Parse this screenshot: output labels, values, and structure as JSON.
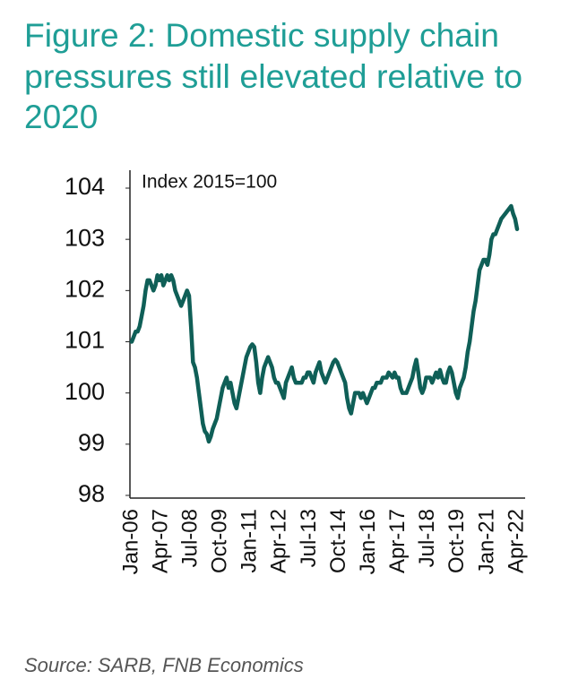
{
  "chart_data": {
    "type": "line",
    "title": [
      "Figure 2: Domestic supply chain",
      "pressures still elevated relative to",
      "2020"
    ],
    "y_label": "Index 2015=100",
    "source": "Source: SARB, FNB Economics",
    "categories": [
      "Jan-06",
      null,
      null,
      null,
      null,
      null,
      null,
      null,
      null,
      null,
      null,
      null,
      null,
      null,
      null,
      "Apr-07",
      null,
      null,
      null,
      null,
      null,
      null,
      null,
      null,
      null,
      null,
      null,
      null,
      null,
      null,
      "Jul-08",
      null,
      null,
      null,
      null,
      null,
      null,
      null,
      null,
      null,
      null,
      null,
      null,
      null,
      null,
      "Oct-09",
      null,
      null,
      null,
      null,
      null,
      null,
      null,
      null,
      null,
      null,
      null,
      null,
      null,
      null,
      "Jan-11",
      null,
      null,
      null,
      null,
      null,
      null,
      null,
      null,
      null,
      null,
      null,
      null,
      null,
      null,
      "Apr-12",
      null,
      null,
      null,
      null,
      null,
      null,
      null,
      null,
      null,
      null,
      null,
      null,
      null,
      null,
      "Jul-13",
      null,
      null,
      null,
      null,
      null,
      null,
      null,
      null,
      null,
      null,
      null,
      null,
      null,
      null,
      "Oct-14",
      null,
      null,
      null,
      null,
      null,
      null,
      null,
      null,
      null,
      null,
      null,
      null,
      null,
      null,
      "Jan-16",
      null,
      null,
      null,
      null,
      null,
      null,
      null,
      null,
      null,
      null,
      null,
      null,
      null,
      null,
      "Apr-17",
      null,
      null,
      null,
      null,
      null,
      null,
      null,
      null,
      null,
      null,
      null,
      null,
      null,
      null,
      "Jul-18",
      null,
      null,
      null,
      null,
      null,
      null,
      null,
      null,
      null,
      null,
      null,
      null,
      null,
      null,
      "Oct-19",
      null,
      null,
      null,
      null,
      null,
      null,
      null,
      null,
      null,
      null,
      null,
      null,
      null,
      null,
      "Jan-21",
      null,
      null,
      null,
      null,
      null,
      null,
      null,
      null,
      null,
      null,
      null,
      null,
      null,
      null,
      "Apr-22"
    ],
    "values": [
      101.0,
      101.1,
      101.2,
      101.2,
      101.3,
      101.5,
      101.7,
      102.0,
      102.2,
      102.2,
      102.1,
      102.0,
      102.1,
      102.3,
      102.2,
      102.3,
      102.1,
      102.2,
      102.3,
      102.2,
      102.3,
      102.2,
      102.0,
      101.9,
      101.8,
      101.7,
      101.8,
      101.9,
      102.0,
      101.9,
      101.3,
      100.6,
      100.5,
      100.3,
      100.0,
      99.7,
      99.4,
      99.25,
      99.2,
      99.05,
      99.15,
      99.3,
      99.4,
      99.5,
      99.7,
      99.9,
      100.1,
      100.2,
      100.3,
      100.1,
      100.2,
      100.0,
      99.8,
      99.7,
      99.9,
      100.1,
      100.3,
      100.5,
      100.7,
      100.8,
      100.9,
      100.95,
      100.9,
      100.6,
      100.2,
      100.0,
      100.3,
      100.5,
      100.6,
      100.7,
      100.6,
      100.5,
      100.3,
      100.2,
      100.2,
      100.1,
      100.0,
      99.9,
      100.2,
      100.3,
      100.4,
      100.5,
      100.3,
      100.2,
      100.2,
      100.2,
      100.2,
      100.3,
      100.3,
      100.4,
      100.4,
      100.3,
      100.2,
      100.4,
      100.5,
      100.6,
      100.4,
      100.3,
      100.2,
      100.3,
      100.4,
      100.5,
      100.6,
      100.65,
      100.6,
      100.5,
      100.4,
      100.3,
      100.2,
      99.9,
      99.7,
      99.6,
      99.8,
      100.0,
      100.0,
      100.0,
      99.9,
      100.0,
      99.9,
      99.8,
      99.9,
      100.0,
      100.1,
      100.1,
      100.2,
      100.2,
      100.2,
      100.3,
      100.3,
      100.3,
      100.4,
      100.35,
      100.3,
      100.4,
      100.3,
      100.3,
      100.1,
      100.0,
      100.0,
      100.0,
      100.1,
      100.2,
      100.3,
      100.5,
      100.65,
      100.4,
      100.1,
      100.0,
      100.1,
      100.3,
      100.3,
      100.3,
      100.2,
      100.3,
      100.4,
      100.3,
      100.45,
      100.3,
      100.2,
      100.2,
      100.4,
      100.5,
      100.4,
      100.2,
      100.0,
      99.9,
      100.1,
      100.2,
      100.3,
      100.5,
      100.8,
      101.0,
      101.3,
      101.6,
      101.8,
      102.1,
      102.4,
      102.5,
      102.6,
      102.6,
      102.5,
      102.7,
      103.0,
      103.1,
      103.1,
      103.2,
      103.3,
      103.4,
      103.45,
      103.5,
      103.55,
      103.6,
      103.65,
      103.5,
      103.4,
      103.2
    ],
    "color": "#0f5f57",
    "ylim": [
      98,
      104
    ],
    "yticks": [
      98,
      99,
      100,
      101,
      102,
      103,
      104
    ],
    "grid": false
  }
}
